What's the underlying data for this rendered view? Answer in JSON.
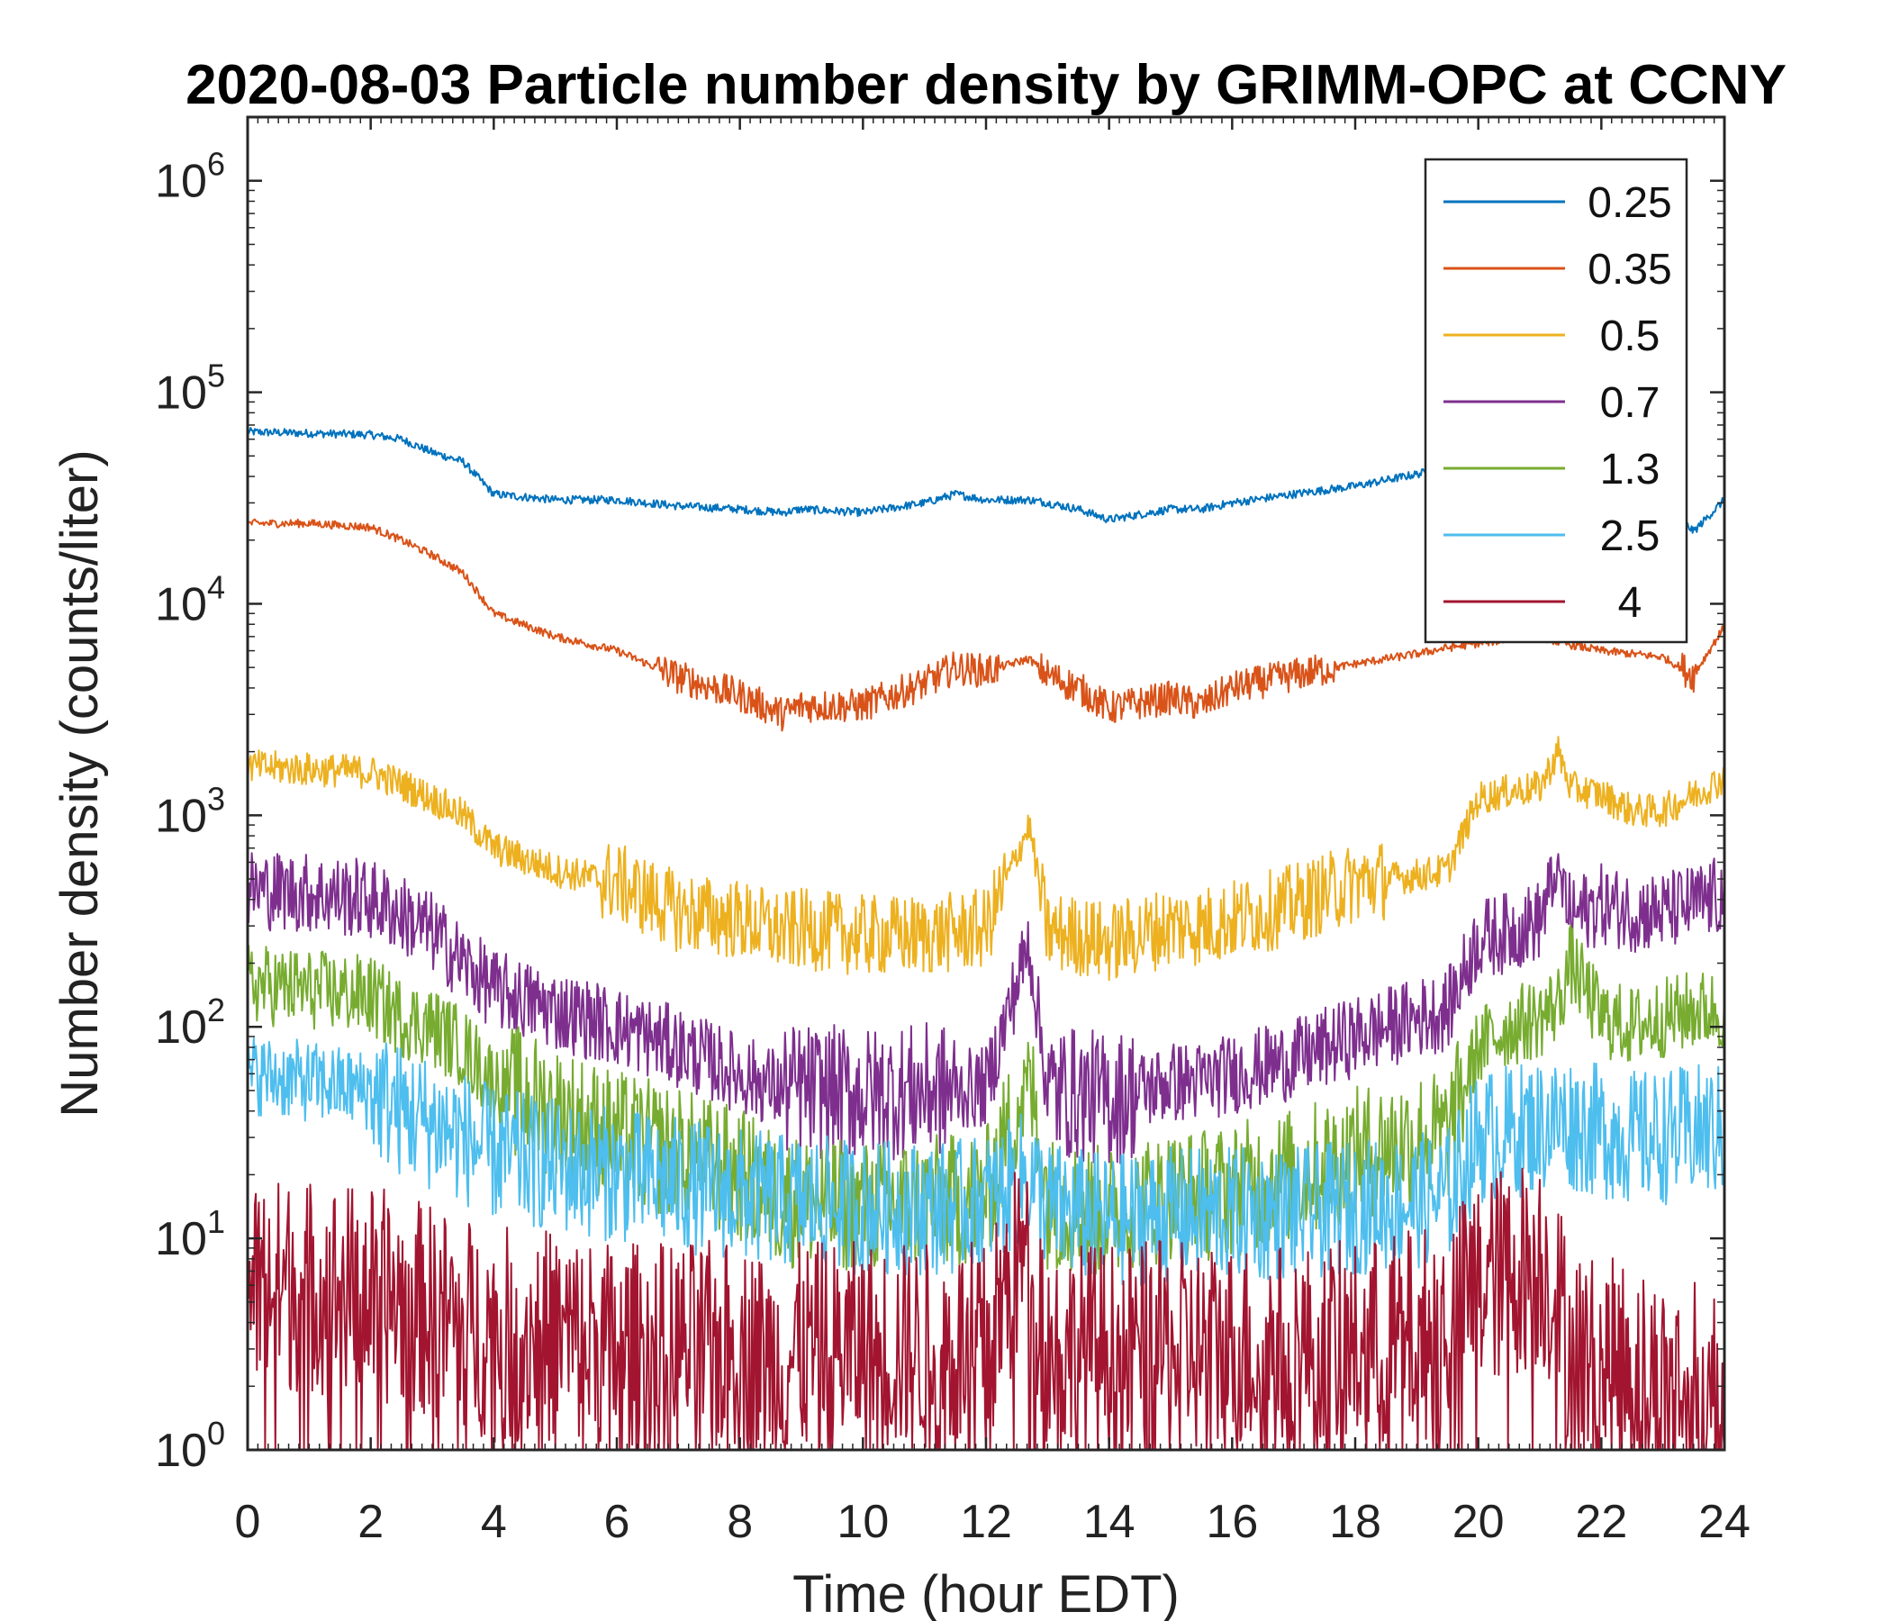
{
  "chart_data": {
    "type": "line",
    "title": "2020-08-03 Particle number density by GRIMM-OPC at CCNY",
    "xlabel": "Time (hour EDT)",
    "ylabel": "Number density (counts/liter)",
    "xlim": [
      0,
      24
    ],
    "ylim": [
      1,
      2000000
    ],
    "yscale": "log",
    "x_ticks": [
      "0",
      "2",
      "4",
      "6",
      "8",
      "10",
      "12",
      "14",
      "16",
      "18",
      "20",
      "22",
      "24"
    ],
    "y_ticks": [
      {
        "base": "10",
        "exp": "0"
      },
      {
        "base": "10",
        "exp": "1"
      },
      {
        "base": "10",
        "exp": "2"
      },
      {
        "base": "10",
        "exp": "3"
      },
      {
        "base": "10",
        "exp": "4"
      },
      {
        "base": "10",
        "exp": "5"
      },
      {
        "base": "10",
        "exp": "6"
      }
    ],
    "legend_position": "top-right",
    "grid": false,
    "x": [
      0,
      1,
      2,
      2.5,
      3,
      3.5,
      4,
      5,
      6,
      7,
      8,
      8.7,
      9,
      10,
      11,
      11.5,
      12,
      12.7,
      13,
      13.5,
      14,
      15,
      15.5,
      16,
      17,
      18,
      19,
      19.5,
      20,
      20.5,
      21,
      21.3,
      21.5,
      22,
      22.5,
      23,
      23.5,
      24
    ],
    "series": [
      {
        "name": "0.25",
        "color": "#0072BD",
        "values": [
          65000,
          64000,
          63000,
          60000,
          52000,
          47000,
          33000,
          31000,
          31000,
          29000,
          28000,
          27000,
          28000,
          27000,
          30000,
          33000,
          31000,
          31000,
          30000,
          28000,
          25000,
          28000,
          28000,
          30000,
          33000,
          36000,
          41000,
          44000,
          46000,
          47000,
          48000,
          44000,
          42000,
          39000,
          35000,
          30000,
          22000,
          31000
        ]
      },
      {
        "name": "0.35",
        "color": "#D95319",
        "values": [
          24000,
          24000,
          23000,
          20000,
          17000,
          14000,
          9000,
          7000,
          6000,
          4500,
          3700,
          3000,
          3300,
          3300,
          4200,
          5000,
          4800,
          5500,
          4600,
          4000,
          3200,
          3600,
          3300,
          4000,
          4600,
          5200,
          5800,
          6200,
          6500,
          6800,
          7000,
          6600,
          6400,
          6000,
          5800,
          5600,
          4600,
          7800
        ]
      },
      {
        "name": "0.5",
        "color": "#EDB120",
        "values": [
          1700,
          1650,
          1600,
          1400,
          1200,
          1000,
          700,
          550,
          480,
          350,
          320,
          280,
          290,
          270,
          270,
          280,
          290,
          900,
          280,
          270,
          250,
          300,
          300,
          320,
          380,
          480,
          520,
          550,
          1200,
          1300,
          1350,
          2000,
          1350,
          1250,
          1050,
          1050,
          1250,
          1500
        ]
      },
      {
        "name": "0.7",
        "color": "#7E2F8E",
        "values": [
          450,
          430,
          400,
          340,
          280,
          200,
          150,
          120,
          100,
          80,
          60,
          50,
          50,
          48,
          50,
          50,
          52,
          250,
          50,
          48,
          45,
          55,
          55,
          60,
          70,
          90,
          110,
          120,
          260,
          280,
          320,
          550,
          330,
          380,
          350,
          350,
          380,
          420
        ]
      },
      {
        "name": "1.3",
        "color": "#77AC30",
        "values": [
          160,
          150,
          140,
          110,
          100,
          80,
          55,
          40,
          30,
          25,
          20,
          15,
          15,
          14,
          15,
          15,
          16,
          60,
          15,
          14,
          13,
          16,
          16,
          17,
          20,
          25,
          30,
          30,
          80,
          100,
          110,
          130,
          200,
          110,
          100,
          110,
          120,
          120
        ]
      },
      {
        "name": "2.5",
        "color": "#4DBEEE",
        "values": [
          60,
          55,
          50,
          40,
          35,
          30,
          25,
          22,
          20,
          18,
          16,
          15,
          15,
          14,
          14,
          14,
          15,
          20,
          14,
          13,
          12,
          13,
          13,
          13,
          13,
          14,
          15,
          16,
          30,
          32,
          34,
          36,
          35,
          32,
          30,
          30,
          32,
          32
        ]
      },
      {
        "name": "4",
        "color": "#A2142F",
        "values": [
          6,
          6,
          5.5,
          5,
          4.5,
          4,
          3.5,
          3.5,
          3,
          3,
          3,
          2.5,
          3,
          3,
          3,
          3,
          3,
          10,
          3,
          3,
          3,
          3,
          3,
          3,
          3,
          3,
          3.5,
          4,
          6,
          7,
          8,
          5,
          3,
          2.5,
          2.5,
          2,
          2,
          2
        ]
      }
    ]
  }
}
